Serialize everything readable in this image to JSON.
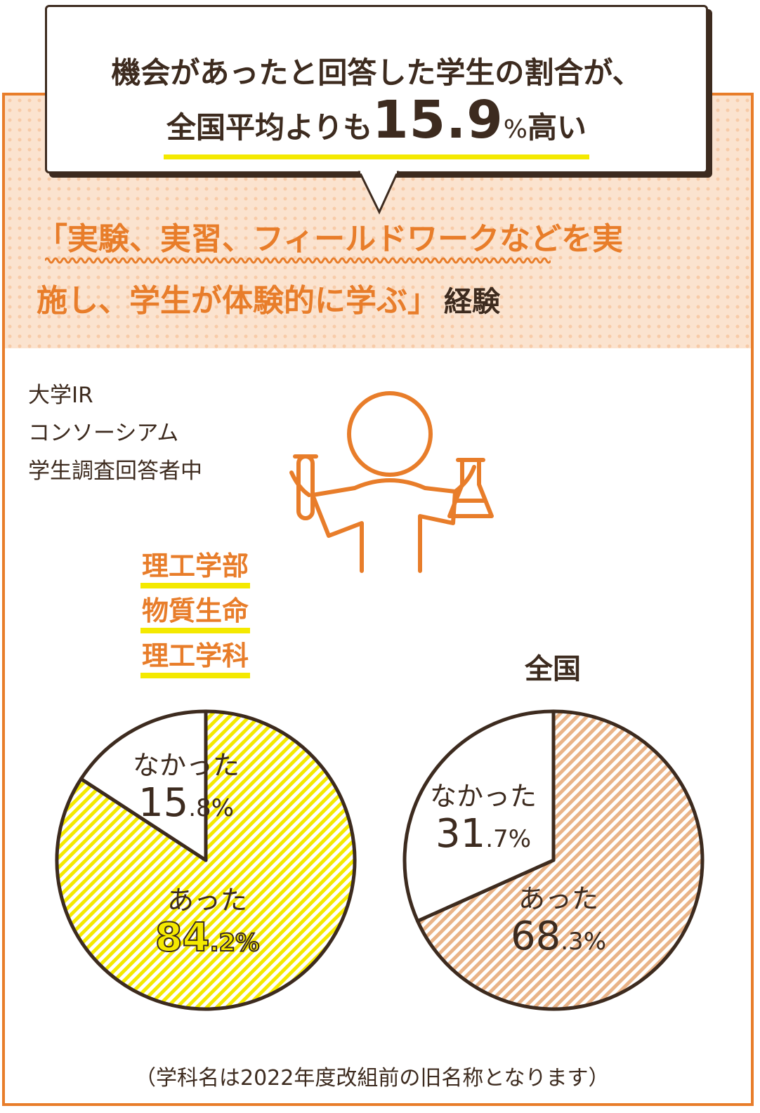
{
  "headline": {
    "line1": "機会があったと回答した学生の割合が、",
    "line2_prefix": "全国平均よりも",
    "line2_value": "15.9",
    "line2_unit": "%",
    "line2_suffix": "高い"
  },
  "subtitle": {
    "line1": "「実験、実習、フィールドワークなどを実",
    "line2": "施し、学生が体験的に学ぶ」",
    "line2_tail": "経験"
  },
  "source": {
    "line1": "大学IR",
    "line2": "コンソーシアム",
    "line3": "学生調査回答者中"
  },
  "departments": [
    "理工学部",
    "物質生命",
    "理工学科"
  ],
  "national_title": "全国",
  "note": "（学科名は2022年度改組前の旧名称となります）",
  "colors": {
    "orange": "#e87d2a",
    "yellow": "#f4e900",
    "tan": "#e9b387",
    "dark": "#3d2b1f"
  },
  "chart_data": [
    {
      "type": "pie",
      "title": "理工学部 物質生命 理工学科",
      "slices": [
        {
          "label": "あった",
          "value": 84.2,
          "int": "84",
          "dec": ".2%",
          "color": "#f4e900",
          "pattern": "diagonal-stripes"
        },
        {
          "label": "なかった",
          "value": 15.8,
          "int": "15",
          "dec": ".8%",
          "color": "#ffffff"
        }
      ]
    },
    {
      "type": "pie",
      "title": "全国",
      "slices": [
        {
          "label": "あった",
          "value": 68.3,
          "int": "68",
          "dec": ".3%",
          "color": "#e9b387",
          "pattern": "diagonal-stripes"
        },
        {
          "label": "なかった",
          "value": 31.7,
          "int": "31",
          "dec": ".7%",
          "color": "#ffffff"
        }
      ]
    }
  ]
}
